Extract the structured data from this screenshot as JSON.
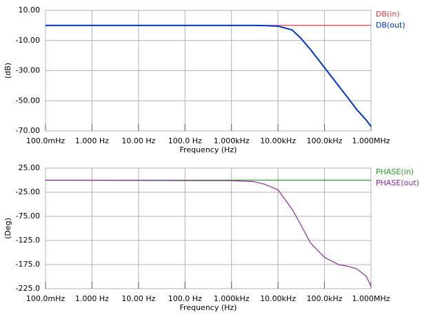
{
  "chart_data": [
    {
      "type": "line",
      "xscale": "log",
      "ylabel": "(dB)",
      "xlabel": "Frequency (Hz)",
      "xlim": [
        0.1,
        1000000
      ],
      "xticks": [
        {
          "value": 0.1,
          "label": "100.0mHz"
        },
        {
          "value": 1,
          "label": "1.000 Hz"
        },
        {
          "value": 10,
          "label": "10.00 Hz"
        },
        {
          "value": 100,
          "label": "100.0 Hz"
        },
        {
          "value": 1000,
          "label": "1.000kHz"
        },
        {
          "value": 10000,
          "label": "10.00kHz"
        },
        {
          "value": 100000,
          "label": "100.0kHz"
        },
        {
          "value": 1000000,
          "label": "1.000MHz"
        }
      ],
      "ylim": [
        -70,
        10
      ],
      "yticks": [
        {
          "value": -70,
          "label": "-70.00"
        },
        {
          "value": -50,
          "label": "-50.00"
        },
        {
          "value": -30,
          "label": "-30.00"
        },
        {
          "value": -10,
          "label": "-10.00"
        },
        {
          "value": 10,
          "label": "10.00"
        }
      ],
      "grid": true,
      "x": [
        0.1,
        1000,
        3000,
        5000,
        10000,
        20000,
        30000,
        50000,
        100000,
        200000,
        300000,
        500000,
        800000,
        1000000
      ],
      "series": [
        {
          "name": "DB(in)",
          "color": "#e03c3c",
          "values": [
            0,
            0,
            0,
            0,
            0,
            0,
            0,
            0,
            0,
            0,
            0,
            0,
            0,
            0
          ]
        },
        {
          "name": "DB(out)",
          "color": "#0033cc",
          "values": [
            0,
            0,
            0,
            -0.1,
            -0.5,
            -3,
            -8,
            -16,
            -28,
            -40,
            -47,
            -56,
            -63,
            -67
          ]
        }
      ]
    },
    {
      "type": "line",
      "xscale": "log",
      "ylabel": "(Deg)",
      "xlabel": "Frequency (Hz)",
      "xlim": [
        0.1,
        1000000
      ],
      "xticks": [
        {
          "value": 0.1,
          "label": "100.0mHz"
        },
        {
          "value": 1,
          "label": "1.000 Hz"
        },
        {
          "value": 10,
          "label": "10.00 Hz"
        },
        {
          "value": 100,
          "label": "100.0 Hz"
        },
        {
          "value": 1000,
          "label": "1.000kHz"
        },
        {
          "value": 10000,
          "label": "10.00kHz"
        },
        {
          "value": 100000,
          "label": "100.0kHz"
        },
        {
          "value": 1000000,
          "label": "1.000MHz"
        }
      ],
      "ylim": [
        -225,
        25
      ],
      "yticks": [
        {
          "value": -225,
          "label": "-225.0"
        },
        {
          "value": -175,
          "label": "-175.0"
        },
        {
          "value": -125,
          "label": "-125.0"
        },
        {
          "value": -75,
          "label": "-75.00"
        },
        {
          "value": -25,
          "label": "-25.00"
        },
        {
          "value": 25,
          "label": "25.00"
        }
      ],
      "grid": true,
      "x": [
        0.1,
        1000,
        3000,
        5000,
        10000,
        20000,
        30000,
        50000,
        100000,
        200000,
        300000,
        500000,
        800000,
        1000000
      ],
      "series": [
        {
          "name": "PHASE(in)",
          "color": "#2e9a2e",
          "values": [
            0,
            0,
            0,
            0,
            0,
            0,
            0,
            0,
            0,
            0,
            0,
            0,
            0,
            0
          ]
        },
        {
          "name": "PHASE(out)",
          "color": "#8a2a9a",
          "values": [
            0,
            -1,
            -3,
            -8,
            -20,
            -60,
            -90,
            -130,
            -160,
            -175,
            -178,
            -184,
            -200,
            -220
          ]
        }
      ]
    }
  ]
}
